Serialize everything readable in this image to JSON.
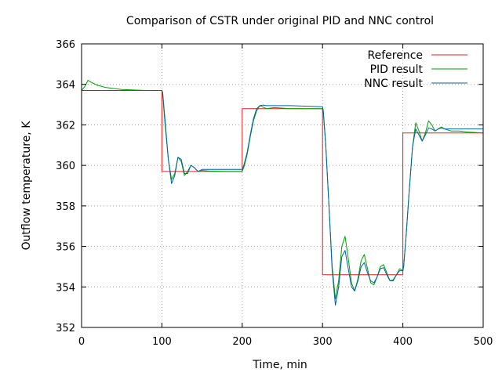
{
  "chart_data": {
    "type": "line",
    "title": "Comparison of CSTR under original PID and NNC control",
    "xlabel": "Time, min",
    "ylabel": "Outflow temperature, K",
    "xlim": [
      0,
      500
    ],
    "ylim": [
      352,
      366
    ],
    "x_ticks": [
      "0",
      "100",
      "200",
      "300",
      "400",
      "500"
    ],
    "y_ticks": [
      "352",
      "354",
      "356",
      "358",
      "360",
      "362",
      "364",
      "366"
    ],
    "grid": true,
    "legend_position": "top-right",
    "series": [
      {
        "name": "Reference",
        "color": "#e0201e",
        "x": [
          0,
          100,
          100,
          200,
          200,
          300,
          300,
          400,
          400,
          500
        ],
        "y": [
          363.7,
          363.7,
          359.7,
          359.7,
          362.8,
          362.8,
          354.6,
          354.6,
          361.6,
          361.6
        ]
      },
      {
        "name": "PID result",
        "color": "#00a000",
        "x": [
          0,
          4,
          8,
          12,
          20,
          30,
          50,
          80,
          100,
          101,
          104,
          108,
          112,
          116,
          120,
          124,
          128,
          132,
          136,
          140,
          145,
          150,
          160,
          180,
          200,
          202,
          206,
          210,
          214,
          218,
          222,
          225,
          230,
          240,
          260,
          300,
          301,
          304,
          308,
          312,
          316,
          320,
          324,
          328,
          332,
          336,
          340,
          344,
          348,
          352,
          356,
          360,
          364,
          368,
          372,
          376,
          380,
          384,
          388,
          392,
          396,
          400,
          401,
          404,
          408,
          412,
          416,
          420,
          424,
          428,
          432,
          436,
          440,
          444,
          448,
          452,
          460,
          470,
          480,
          500
        ],
        "y": [
          363.7,
          363.9,
          364.2,
          364.1,
          363.95,
          363.85,
          363.75,
          363.7,
          363.7,
          363.5,
          362.0,
          360.3,
          359.3,
          359.6,
          360.4,
          360.2,
          359.5,
          359.7,
          360.0,
          359.9,
          359.7,
          359.75,
          359.72,
          359.7,
          359.7,
          359.9,
          360.5,
          361.4,
          362.2,
          362.7,
          362.95,
          362.9,
          362.8,
          362.85,
          362.8,
          362.8,
          362.6,
          361.0,
          358.0,
          355.0,
          353.4,
          354.3,
          356.0,
          356.5,
          355.4,
          354.2,
          353.8,
          354.4,
          355.3,
          355.6,
          354.9,
          354.2,
          354.1,
          354.5,
          355.0,
          355.1,
          354.7,
          354.3,
          354.3,
          354.6,
          354.9,
          354.8,
          355.0,
          356.5,
          358.8,
          360.9,
          362.1,
          361.7,
          361.2,
          361.6,
          362.2,
          362.0,
          361.7,
          361.8,
          361.9,
          361.8,
          361.7,
          361.7,
          361.65,
          361.6
        ]
      },
      {
        "name": "NNC result",
        "color": "#0060b0",
        "x": [
          0,
          10,
          30,
          60,
          100,
          101,
          104,
          108,
          112,
          116,
          120,
          124,
          128,
          132,
          136,
          140,
          145,
          150,
          160,
          180,
          200,
          202,
          206,
          210,
          214,
          218,
          222,
          226,
          230,
          240,
          260,
          300,
          301,
          304,
          308,
          312,
          316,
          320,
          324,
          328,
          332,
          336,
          340,
          344,
          348,
          352,
          356,
          360,
          364,
          368,
          372,
          376,
          380,
          384,
          388,
          392,
          396,
          400,
          401,
          404,
          408,
          412,
          416,
          420,
          424,
          428,
          432,
          436,
          440,
          444,
          448,
          452,
          460,
          470,
          480,
          500
        ],
        "y": [
          363.7,
          363.7,
          363.7,
          363.7,
          363.7,
          363.6,
          362.2,
          360.3,
          359.1,
          359.5,
          360.4,
          360.3,
          359.6,
          359.6,
          360.0,
          359.9,
          359.7,
          359.8,
          359.8,
          359.8,
          359.8,
          360.0,
          360.6,
          361.5,
          362.3,
          362.8,
          362.95,
          362.98,
          362.95,
          362.95,
          362.95,
          362.9,
          362.7,
          361.0,
          358.0,
          354.8,
          353.1,
          354.0,
          355.5,
          355.8,
          354.9,
          354.0,
          353.8,
          354.3,
          355.0,
          355.2,
          354.7,
          354.3,
          354.2,
          354.5,
          354.9,
          354.95,
          354.6,
          354.3,
          354.35,
          354.6,
          354.8,
          354.8,
          355.0,
          356.5,
          358.8,
          360.9,
          361.8,
          361.5,
          361.2,
          361.5,
          361.85,
          361.8,
          361.7,
          361.8,
          361.85,
          361.8,
          361.8,
          361.8,
          361.8,
          361.8
        ]
      }
    ]
  }
}
